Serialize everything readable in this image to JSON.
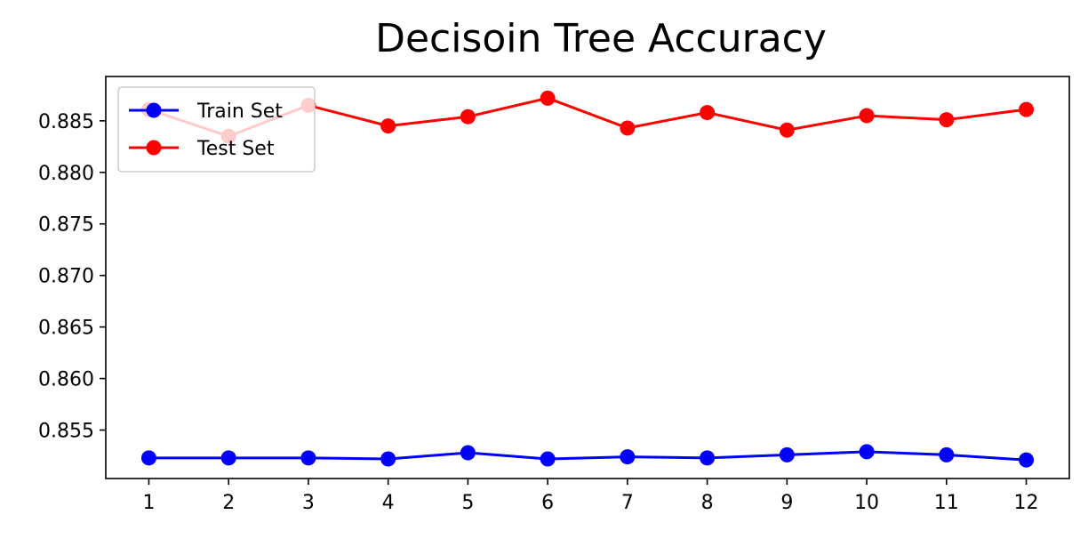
{
  "chart_data": {
    "type": "line",
    "title": "Decisoin Tree Accuracy",
    "xlabel": "",
    "ylabel": "",
    "x": [
      1,
      2,
      3,
      4,
      5,
      6,
      7,
      8,
      9,
      10,
      11,
      12
    ],
    "xticks": [
      "1",
      "2",
      "3",
      "4",
      "5",
      "6",
      "7",
      "8",
      "9",
      "10",
      "11",
      "12"
    ],
    "yticks": [
      "0.855",
      "0.860",
      "0.865",
      "0.870",
      "0.875",
      "0.880",
      "0.885"
    ],
    "ytick_values": [
      0.855,
      0.86,
      0.865,
      0.87,
      0.875,
      0.88,
      0.885
    ],
    "ylim": [
      0.8503,
      0.8893
    ],
    "grid": false,
    "legend_position": "top-left",
    "series": [
      {
        "name": "Train Set",
        "color": "#0000ff",
        "values": [
          0.8523,
          0.8523,
          0.8523,
          0.8522,
          0.8528,
          0.8522,
          0.8524,
          0.8523,
          0.8526,
          0.8529,
          0.8526,
          0.8521
        ]
      },
      {
        "name": "Test Set",
        "color": "#ff0000",
        "values": [
          0.8861,
          0.8835,
          0.8865,
          0.8845,
          0.8854,
          0.8872,
          0.8843,
          0.8858,
          0.8841,
          0.8855,
          0.8851,
          0.8861
        ]
      }
    ]
  }
}
